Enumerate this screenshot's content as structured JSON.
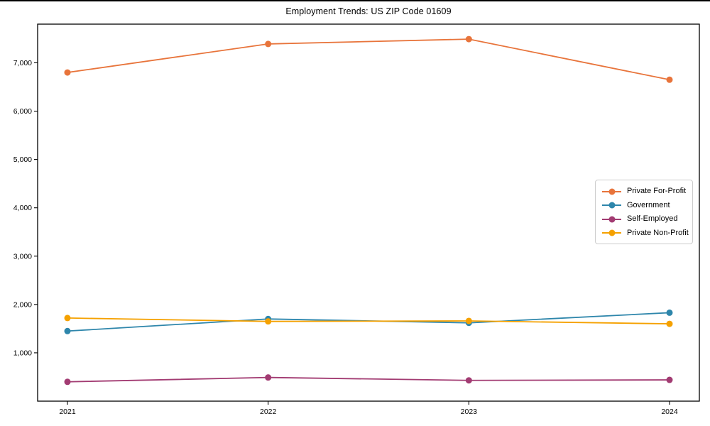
{
  "frame": {
    "top_edge_color": "#000000",
    "background_color": "#ffffff"
  },
  "chart_data": {
    "type": "line",
    "title": "Employment Trends: US ZIP Code 01609",
    "xlabel": "",
    "ylabel": "",
    "categories": [
      "2021",
      "2022",
      "2023",
      "2024"
    ],
    "series": [
      {
        "name": "Private For-Profit",
        "color": "#E8743B",
        "values": [
          6800,
          7390,
          7490,
          6650
        ]
      },
      {
        "name": "Government",
        "color": "#2E86AB",
        "values": [
          1450,
          1700,
          1620,
          1830
        ]
      },
      {
        "name": "Self-Employed",
        "color": "#A23B72",
        "values": [
          400,
          490,
          430,
          440
        ]
      },
      {
        "name": "Private Non-Profit",
        "color": "#F5A100",
        "values": [
          1720,
          1650,
          1660,
          1600
        ]
      }
    ],
    "yticks": [
      1000,
      2000,
      3000,
      4000,
      5000,
      6000,
      7000
    ],
    "ytick_labels": [
      "1,000",
      "2,000",
      "3,000",
      "4,000",
      "5,000",
      "6,000",
      "7,000"
    ],
    "ylim": [
      0,
      7800
    ],
    "grid": false,
    "legend_position": "middle-right",
    "axis_color": "#000000",
    "marker": "circle",
    "marker_radius": 4.5,
    "line_width": 1.8
  }
}
